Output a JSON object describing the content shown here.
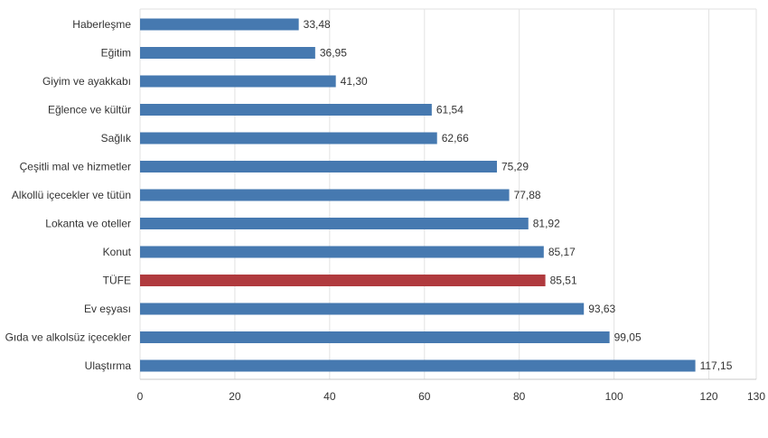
{
  "chart_data": {
    "type": "bar",
    "orientation": "horizontal",
    "title": "",
    "xlabel": "",
    "ylabel": "",
    "xlim": [
      0,
      130
    ],
    "x_ticks": [
      0,
      20,
      40,
      60,
      80,
      100,
      120,
      130
    ],
    "x_tick_labels": [
      "0",
      "20",
      "40",
      "60",
      "80",
      "100",
      "120",
      "130"
    ],
    "grid": true,
    "legend": "none",
    "categories": [
      "Haberleşme",
      "Eğitim",
      "Giyim ve ayakkabı",
      "Eğlence ve kültür",
      "Sağlık",
      "Çeşitli mal ve hizmetler",
      "Alkollü içecekler ve tütün",
      "Lokanta ve oteller",
      "Konut",
      "TÜFE",
      "Ev eşyası",
      "Gıda ve alkolsüz içecekler",
      "Ulaştırma"
    ],
    "values": [
      33.48,
      36.95,
      41.3,
      61.54,
      62.66,
      75.29,
      77.88,
      81.92,
      85.17,
      85.51,
      93.63,
      99.05,
      117.15
    ],
    "value_labels": [
      "33,48",
      "36,95",
      "41,30",
      "61,54",
      "62,66",
      "75,29",
      "77,88",
      "81,92",
      "85,17",
      "85,51",
      "93,63",
      "99,05",
      "117,15"
    ],
    "highlight": "TÜFE",
    "colors": {
      "bar": "#4679b0",
      "highlight": "#b03a3e",
      "grid": "#e2e2e2",
      "axis": "#c8c8c8",
      "text": "#333333"
    }
  }
}
